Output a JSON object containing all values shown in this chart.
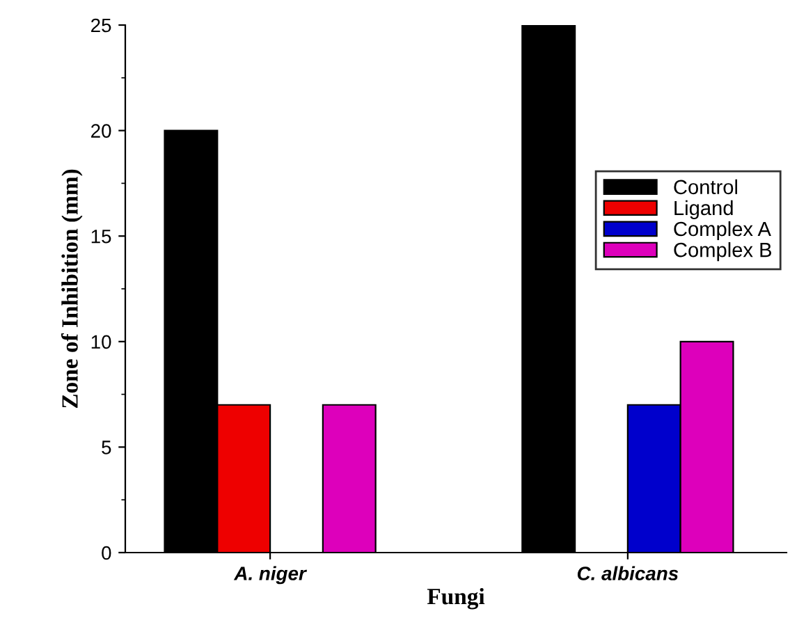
{
  "chart_data": {
    "type": "bar",
    "xlabel": "Fungi",
    "ylabel": "Zone of Inhibition (mm)",
    "categories": [
      "A. niger",
      "C. albicans"
    ],
    "series": [
      {
        "name": "Control",
        "color": "#000000",
        "values": [
          20,
          25
        ]
      },
      {
        "name": "Ligand",
        "color": "#ee0000",
        "values": [
          7,
          null
        ]
      },
      {
        "name": "Complex A",
        "color": "#0000cc",
        "values": [
          null,
          7
        ]
      },
      {
        "name": "Complex B",
        "color": "#dd00bb",
        "values": [
          7,
          10
        ]
      }
    ],
    "ylim": [
      0,
      25
    ],
    "yticks": [
      0,
      5,
      10,
      15,
      20,
      25
    ],
    "grid": false,
    "legend": "right"
  }
}
